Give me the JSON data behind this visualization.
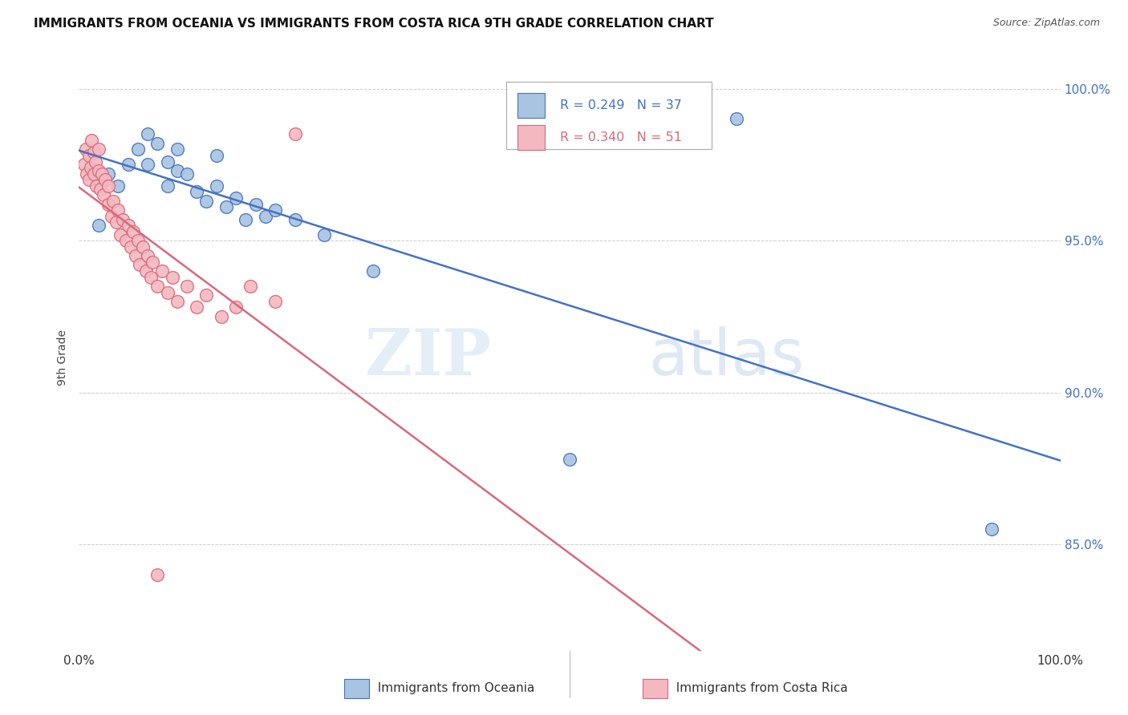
{
  "title": "IMMIGRANTS FROM OCEANIA VS IMMIGRANTS FROM COSTA RICA 9TH GRADE CORRELATION CHART",
  "source": "Source: ZipAtlas.com",
  "ylabel": "9th Grade",
  "ylabel_right_ticks": [
    "85.0%",
    "90.0%",
    "95.0%",
    "100.0%"
  ],
  "ylabel_right_vals": [
    0.85,
    0.9,
    0.95,
    1.0
  ],
  "legend_blue_label": "Immigrants from Oceania",
  "legend_pink_label": "Immigrants from Costa Rica",
  "color_blue": "#a8c4e0",
  "color_blue_line": "#4472c4",
  "color_pink": "#f4b8c1",
  "color_pink_line": "#d9697a",
  "color_legend_text_blue": "#4472c4",
  "color_legend_text_pink": "#d9697a",
  "xlim": [
    0.0,
    1.0
  ],
  "ylim": [
    0.815,
    1.008
  ],
  "blue_scatter_x": [
    0.02,
    0.02,
    0.03,
    0.04,
    0.05,
    0.06,
    0.07,
    0.07,
    0.08,
    0.09,
    0.09,
    0.1,
    0.1,
    0.11,
    0.12,
    0.13,
    0.14,
    0.14,
    0.15,
    0.16,
    0.17,
    0.18,
    0.19,
    0.2,
    0.22,
    0.25,
    0.3,
    0.5,
    0.67,
    0.93
  ],
  "blue_scatter_y": [
    0.955,
    0.97,
    0.972,
    0.968,
    0.975,
    0.98,
    0.985,
    0.975,
    0.982,
    0.976,
    0.968,
    0.973,
    0.98,
    0.972,
    0.966,
    0.963,
    0.978,
    0.968,
    0.961,
    0.964,
    0.957,
    0.962,
    0.958,
    0.96,
    0.957,
    0.952,
    0.94,
    0.878,
    0.99,
    0.855
  ],
  "pink_scatter_x": [
    0.005,
    0.007,
    0.008,
    0.01,
    0.01,
    0.012,
    0.013,
    0.015,
    0.015,
    0.017,
    0.018,
    0.02,
    0.02,
    0.022,
    0.023,
    0.025,
    0.027,
    0.03,
    0.03,
    0.033,
    0.035,
    0.038,
    0.04,
    0.042,
    0.045,
    0.048,
    0.05,
    0.053,
    0.055,
    0.058,
    0.06,
    0.062,
    0.065,
    0.068,
    0.07,
    0.073,
    0.075,
    0.08,
    0.085,
    0.09,
    0.095,
    0.1,
    0.11,
    0.12,
    0.13,
    0.145,
    0.16,
    0.175,
    0.2,
    0.22,
    0.08
  ],
  "pink_scatter_y": [
    0.975,
    0.98,
    0.972,
    0.97,
    0.978,
    0.974,
    0.983,
    0.972,
    0.979,
    0.976,
    0.968,
    0.973,
    0.98,
    0.967,
    0.972,
    0.965,
    0.97,
    0.962,
    0.968,
    0.958,
    0.963,
    0.956,
    0.96,
    0.952,
    0.957,
    0.95,
    0.955,
    0.948,
    0.953,
    0.945,
    0.95,
    0.942,
    0.948,
    0.94,
    0.945,
    0.938,
    0.943,
    0.935,
    0.94,
    0.933,
    0.938,
    0.93,
    0.935,
    0.928,
    0.932,
    0.925,
    0.928,
    0.935,
    0.93,
    0.985,
    0.84
  ],
  "watermark_zip": "ZIP",
  "watermark_atlas": "atlas",
  "background_color": "#ffffff",
  "grid_color": "#cccccc"
}
